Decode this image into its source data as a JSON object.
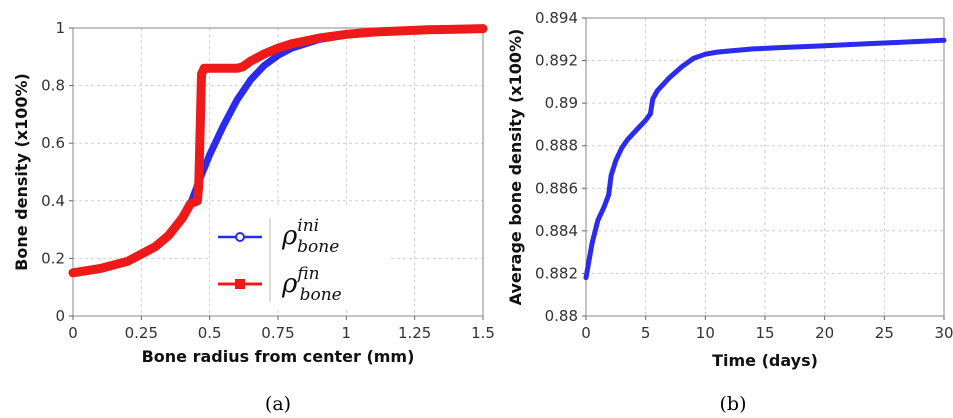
{
  "colors": {
    "initial": "#2b2bf0",
    "final": "#ee1a1a",
    "grid": "#cfcfcf"
  },
  "panel_labels": [
    "(a)",
    "(b)"
  ],
  "chart_data": [
    {
      "panel": "(a)",
      "type": "line",
      "xlabel": "Bone radius from center (mm)",
      "ylabel": "Bone density (x100%)",
      "xlim": [
        0,
        1.5
      ],
      "ylim": [
        0,
        1
      ],
      "xticks": [
        "0",
        "0.25",
        "0.5",
        "0.75",
        "1",
        "1.25",
        "1.5"
      ],
      "yticks": [
        "0",
        "0.2",
        "0.4",
        "0.6",
        "0.8",
        "1"
      ],
      "grid": true,
      "legend_position": "bottom-center",
      "series": [
        {
          "name": "ρ_bone^ini",
          "legend_base": "ρ",
          "legend_sub": "bone",
          "legend_sup": "ini",
          "marker": "circle",
          "x": [
            0,
            0.1,
            0.2,
            0.3,
            0.35,
            0.4,
            0.43,
            0.45,
            0.47,
            0.5,
            0.55,
            0.6,
            0.65,
            0.7,
            0.75,
            0.8,
            0.9,
            1.0,
            1.1,
            1.2,
            1.3,
            1.4,
            1.5
          ],
          "y": [
            0.15,
            0.165,
            0.19,
            0.24,
            0.28,
            0.34,
            0.39,
            0.44,
            0.49,
            0.56,
            0.66,
            0.75,
            0.82,
            0.87,
            0.905,
            0.93,
            0.96,
            0.975,
            0.985,
            0.99,
            0.993,
            0.996,
            0.998
          ]
        },
        {
          "name": "ρ_bone^fin",
          "legend_base": "ρ",
          "legend_sub": "bone",
          "legend_sup": "fin",
          "marker": "square",
          "x": [
            0,
            0.1,
            0.2,
            0.3,
            0.35,
            0.4,
            0.43,
            0.455,
            0.46,
            0.465,
            0.47,
            0.475,
            0.48,
            0.5,
            0.55,
            0.6,
            0.62,
            0.65,
            0.7,
            0.75,
            0.8,
            0.9,
            1.0,
            1.1,
            1.2,
            1.3,
            1.4,
            1.5
          ],
          "y": [
            0.15,
            0.165,
            0.19,
            0.24,
            0.28,
            0.34,
            0.39,
            0.4,
            0.45,
            0.64,
            0.84,
            0.85,
            0.86,
            0.86,
            0.86,
            0.86,
            0.865,
            0.885,
            0.91,
            0.93,
            0.945,
            0.965,
            0.978,
            0.986,
            0.99,
            0.994,
            0.996,
            0.998
          ]
        }
      ]
    },
    {
      "panel": "(b)",
      "type": "line",
      "xlabel": "Time (days)",
      "ylabel": "Average bone density (x100%)",
      "xlim": [
        0,
        30
      ],
      "ylim": [
        0.88,
        0.894
      ],
      "xticks": [
        "0",
        "5",
        "10",
        "15",
        "20",
        "25",
        "30"
      ],
      "yticks": [
        "0.88",
        "0.882",
        "0.884",
        "0.886",
        "0.888",
        "0.89",
        "0.892",
        "0.894"
      ],
      "grid": true,
      "series": [
        {
          "x": [
            0,
            0.5,
            1,
            1.5,
            1.9,
            2.1,
            2.5,
            3,
            3.5,
            4,
            4.5,
            5,
            5.4,
            5.6,
            6,
            7,
            8,
            9,
            10,
            11,
            12,
            14,
            16,
            18,
            20,
            22,
            24,
            26,
            28,
            30
          ],
          "y": [
            0.8818,
            0.8834,
            0.8845,
            0.8851,
            0.8857,
            0.8866,
            0.8873,
            0.8879,
            0.8883,
            0.8886,
            0.8889,
            0.8892,
            0.8895,
            0.8902,
            0.8906,
            0.8912,
            0.8917,
            0.8921,
            0.8923,
            0.8924,
            0.89245,
            0.89255,
            0.8926,
            0.89265,
            0.8927,
            0.89275,
            0.8928,
            0.89285,
            0.8929,
            0.89295
          ]
        }
      ]
    }
  ]
}
